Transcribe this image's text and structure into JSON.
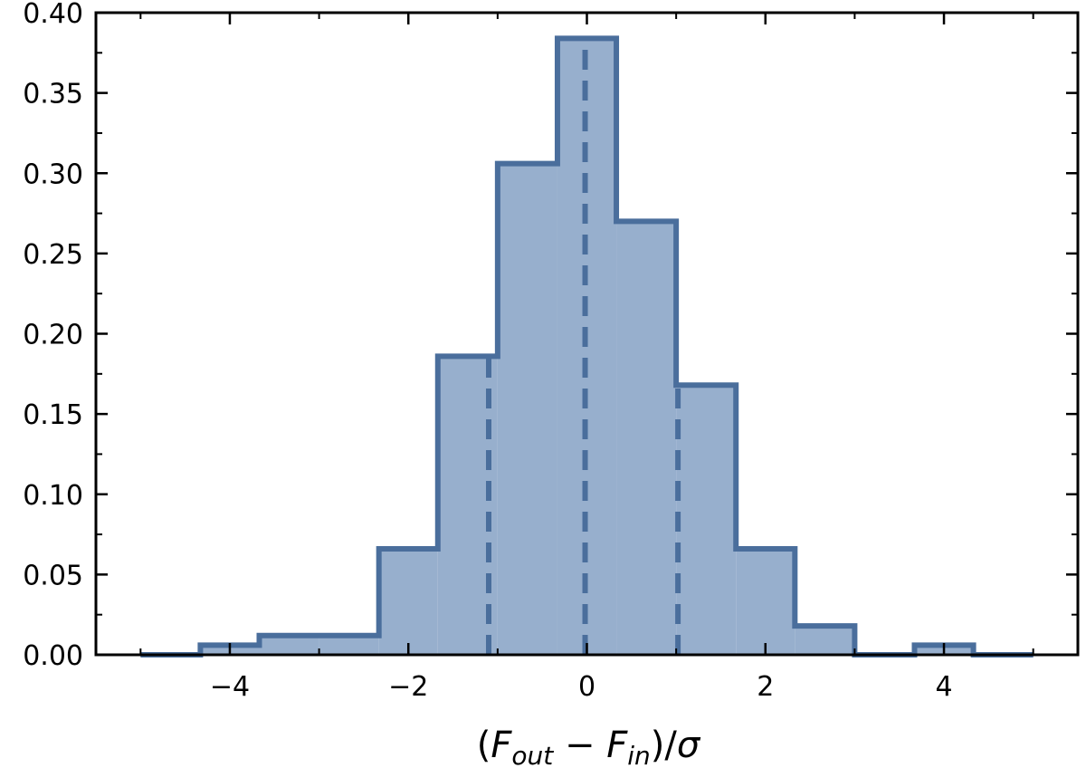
{
  "chart_data": {
    "type": "histogram",
    "title": "",
    "xlabel": {
      "parts": [
        "(",
        "F",
        "out",
        " − ",
        "F",
        "in",
        ")/",
        "σ"
      ]
    },
    "ylabel": "",
    "xlim": [
      -5.5,
      5.5
    ],
    "ylim": [
      0,
      0.4
    ],
    "x_ticks": [
      -4,
      -2,
      0,
      2,
      4
    ],
    "x_tick_labels": [
      "−4",
      "−2",
      "0",
      "2",
      "4"
    ],
    "y_ticks": [
      0.0,
      0.05,
      0.1,
      0.15,
      0.2,
      0.25,
      0.3,
      0.35,
      0.4
    ],
    "y_tick_labels": [
      "0.00",
      "0.05",
      "0.10",
      "0.15",
      "0.20",
      "0.25",
      "0.30",
      "0.35",
      "0.40"
    ],
    "bin_edges": [
      -5.0,
      -4.33,
      -3.67,
      -3.0,
      -2.33,
      -1.67,
      -1.0,
      -0.33,
      0.33,
      1.0,
      1.67,
      2.33,
      3.0,
      3.67,
      4.33,
      5.0
    ],
    "values": [
      0.0,
      0.006,
      0.012,
      0.012,
      0.066,
      0.186,
      0.306,
      0.384,
      0.27,
      0.168,
      0.066,
      0.018,
      0.0,
      0.006,
      0.0
    ],
    "vlines": [
      -1.1,
      -0.02,
      1.02
    ],
    "grid": false,
    "colors": {
      "fill": "#97afcd",
      "edge": "#4a6e9c",
      "axis": "#000000"
    }
  }
}
